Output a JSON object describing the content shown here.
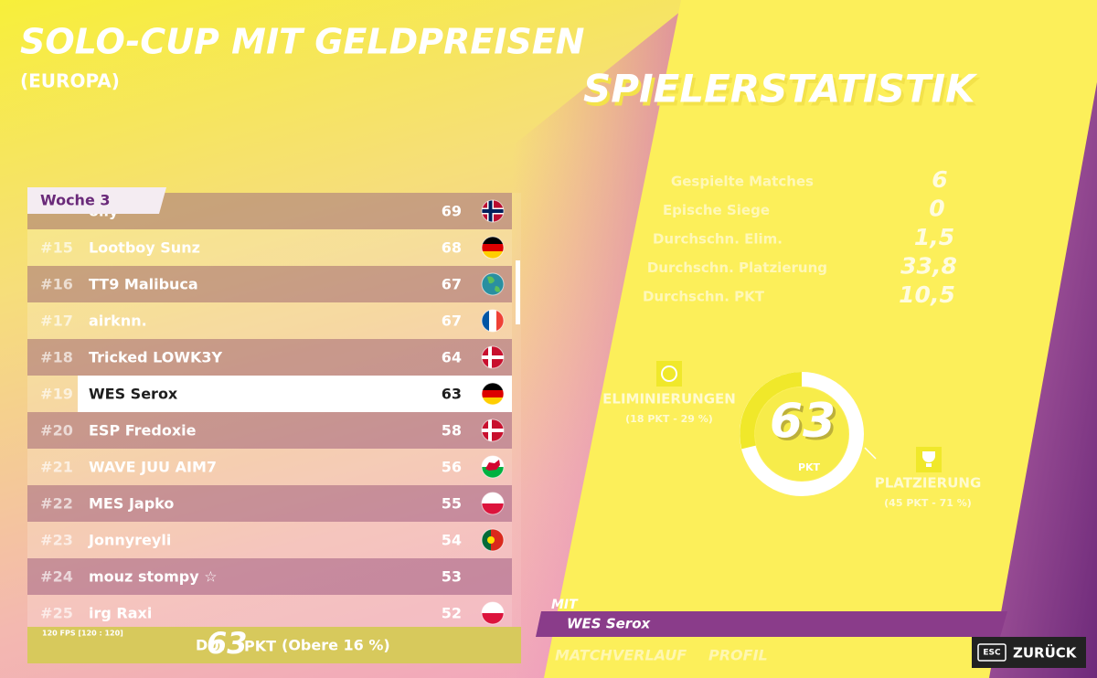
{
  "header": {
    "title": "SOLO-CUP MIT GELDPREISEN",
    "region": "(EUROPA)"
  },
  "panel_title": "SPIELERSTATISTIK",
  "leaderboard": {
    "tab": "Woche 3",
    "rows": [
      {
        "name": "olly",
        "points": 69
      },
      {
        "rank": "#15",
        "name": "Lootboy Sunz",
        "points": 68
      },
      {
        "rank": "#16",
        "name": "TT9 Malibuca",
        "points": 67
      },
      {
        "rank": "#17",
        "name": "airknn.",
        "points": 67
      },
      {
        "rank": "#18",
        "name": "Tricked LOWK3Y",
        "points": 64
      },
      {
        "rank": "#19",
        "name": "WES Serox",
        "points": 63
      },
      {
        "rank": "#20",
        "name": "ESP Fredoxie",
        "points": 58
      },
      {
        "rank": "#21",
        "name": "WAVE JUU AIM7",
        "points": 56
      },
      {
        "rank": "#22",
        "name": "MES Japko",
        "points": 55
      },
      {
        "rank": "#23",
        "name": "Jonnyreyli",
        "points": 54
      },
      {
        "rank": "#24",
        "name": "mouz stompy ☆",
        "points": 53
      },
      {
        "rank": "#25",
        "name": "irg Raxi",
        "points": 52
      }
    ],
    "fps": "120 FPS [120 : 120]",
    "you": {
      "label": "DU:",
      "points": 63,
      "unit": "PKT",
      "rank_text": "(Obere 16 %)"
    }
  },
  "stats": [
    {
      "label": "Gespielte Matches",
      "value": 6
    },
    {
      "label": "Epische Siege",
      "value": 0
    },
    {
      "label": "Durchschn. Elim.",
      "value": "1,5"
    },
    {
      "label": "Durchschn. Platzierung",
      "value": "33,8"
    },
    {
      "label": "Durchschn. PKT",
      "value": "10,5"
    }
  ],
  "score": {
    "value": 63,
    "unit": "PKT",
    "elim": {
      "label": "ELIMINIERUNGEN",
      "detail": "(18 PKT - 29 %)"
    },
    "placement": {
      "label": "PLATZIERUNG",
      "detail": "(45 PKT - 71 %)"
    }
  },
  "party": {
    "label": "MIT",
    "name": "WES Serox"
  },
  "tabs": [
    "MATCHVERLAUF",
    "PROFIL"
  ],
  "back": {
    "key": "ESC",
    "label": "ZURÜCK"
  }
}
